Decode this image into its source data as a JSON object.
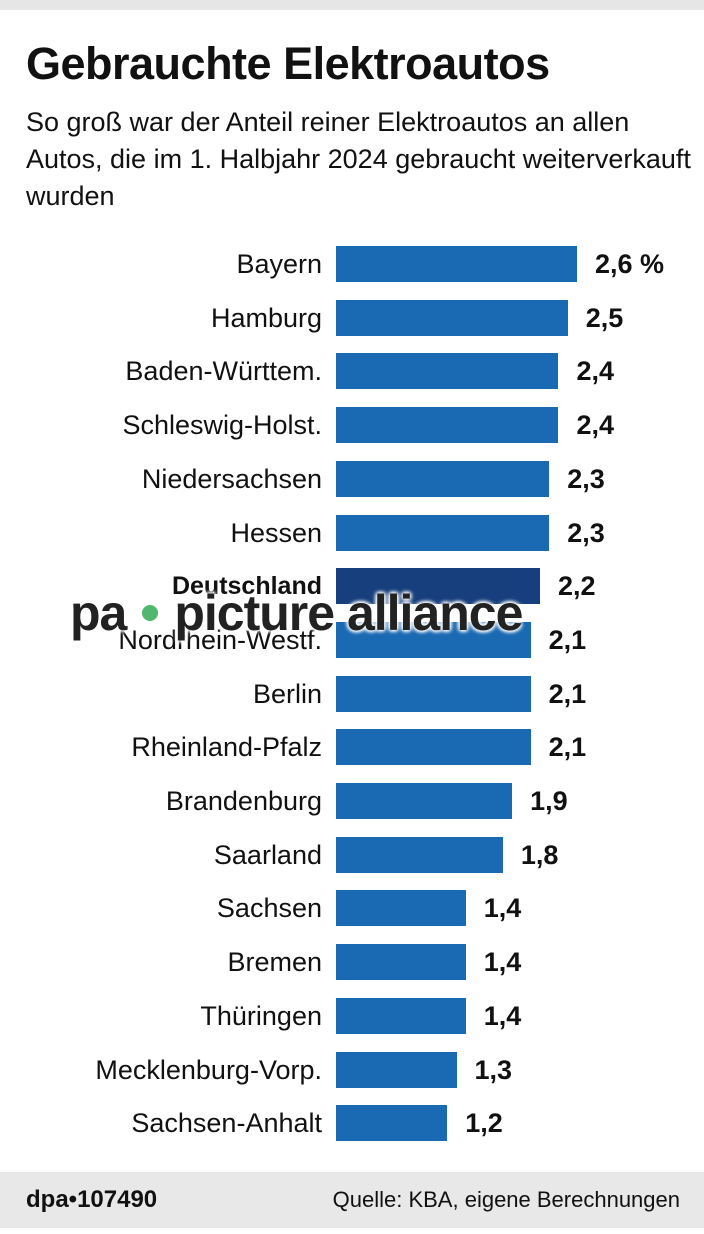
{
  "header": {
    "title": "Gebrauchte Elektroautos",
    "subtitle": "So groß war der Anteil reiner Elektroautos an allen Autos, die im 1. Halbjahr 2024 gebraucht weiterverkauft wurden"
  },
  "watermark": {
    "left": "pa",
    "right": "picture alliance"
  },
  "footer": {
    "id": "dpa•107490",
    "source": "Quelle: KBA, eigene Berechnungen"
  },
  "colors": {
    "bar": "#1a69b3",
    "highlight_bar": "#173f7d",
    "footer_bg": "#e8e8e8"
  },
  "chart_data": {
    "type": "bar",
    "orientation": "horizontal",
    "title": "Gebrauchte Elektroautos",
    "subtitle": "So groß war der Anteil reiner Elektroautos an allen Autos, die im 1. Halbjahr 2024 gebraucht weiterverkauft wurden",
    "xlabel": "",
    "ylabel": "",
    "unit": "%",
    "grid": false,
    "legend": null,
    "categories": [
      "Bayern",
      "Hamburg",
      "Baden-Württem.",
      "Schleswig-Holst.",
      "Niedersachsen",
      "Hessen",
      "Deutschland",
      "Nordrhein-Westf.",
      "Berlin",
      "Rheinland-Pfalz",
      "Brandenburg",
      "Saarland",
      "Sachsen",
      "Bremen",
      "Thüringen",
      "Mecklenburg-Vorp.",
      "Sachsen-Anhalt"
    ],
    "values": [
      2.6,
      2.5,
      2.4,
      2.4,
      2.3,
      2.3,
      2.2,
      2.1,
      2.1,
      2.1,
      1.9,
      1.8,
      1.4,
      1.4,
      1.4,
      1.3,
      1.2
    ],
    "value_labels": [
      "2,6 %",
      "2,5",
      "2,4",
      "2,4",
      "2,3",
      "2,3",
      "2,2",
      "2,1",
      "2,1",
      "2,1",
      "1,9",
      "1,8",
      "1,4",
      "1,4",
      "1,4",
      "1,3",
      "1,2"
    ],
    "highlight": "Deutschland",
    "source": "Quelle: KBA, eigene Berechnungen"
  }
}
